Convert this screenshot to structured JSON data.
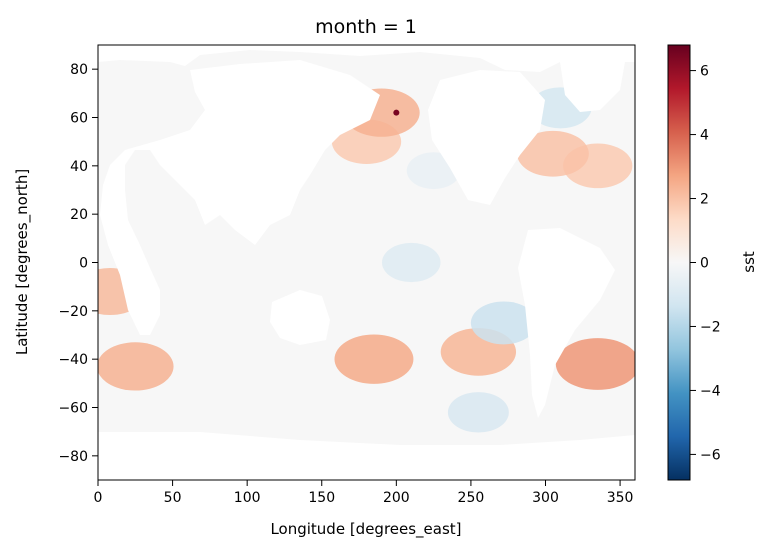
{
  "chart_data": {
    "type": "heatmap",
    "title": "month = 1",
    "xlabel": "Longitude [degrees_east]",
    "ylabel": "Latitude [degrees_north]",
    "xlim": [
      0,
      360
    ],
    "ylim": [
      -90,
      90
    ],
    "x_ticks": [
      0,
      50,
      100,
      150,
      200,
      250,
      300,
      350
    ],
    "y_ticks": [
      80,
      60,
      40,
      20,
      0,
      -20,
      -40,
      -60,
      -80
    ],
    "x_tick_labels": [
      "0",
      "50",
      "100",
      "150",
      "200",
      "250",
      "300",
      "350"
    ],
    "y_tick_labels": [
      "80",
      "60",
      "40",
      "20",
      "0",
      "−20",
      "−40",
      "−60",
      "−80"
    ],
    "colorbar": {
      "label": "sst",
      "colormap": "RdBu_r",
      "vmin": -6.8,
      "vmax": 6.8,
      "ticks": [
        6,
        4,
        2,
        0,
        -2,
        -4,
        -6
      ],
      "tick_labels": [
        "6",
        "4",
        "2",
        "0",
        "−2",
        "−4",
        "−6"
      ],
      "colors": [
        "#053061",
        "#2166ac",
        "#4393c3",
        "#92c5de",
        "#d1e5f0",
        "#f7f7f7",
        "#fddbc7",
        "#f4a582",
        "#d6604d",
        "#b2182b",
        "#67001f"
      ]
    },
    "grid": false,
    "land_color": "#ffffff",
    "anomaly_features": [
      {
        "lon": 335,
        "lat": -42,
        "value": 3.0
      },
      {
        "lon": 185,
        "lat": -40,
        "value": 2.6
      },
      {
        "lon": 255,
        "lat": -37,
        "value": 2.3
      },
      {
        "lon": 25,
        "lat": -43,
        "value": 2.4
      },
      {
        "lon": 8,
        "lat": -12,
        "value": 2.2
      },
      {
        "lon": 180,
        "lat": 50,
        "value": 1.8
      },
      {
        "lon": 335,
        "lat": 40,
        "value": 1.8
      },
      {
        "lon": 305,
        "lat": 45,
        "value": 2.0
      },
      {
        "lon": 190,
        "lat": 62,
        "value": 2.4
      },
      {
        "lon": 210,
        "lat": 0,
        "value": -0.9
      },
      {
        "lon": 272,
        "lat": -25,
        "value": -1.5
      },
      {
        "lon": 255,
        "lat": -62,
        "value": -1.1
      },
      {
        "lon": 310,
        "lat": 64,
        "value": -1.2
      },
      {
        "lon": 225,
        "lat": 38,
        "value": -0.5
      },
      {
        "lon": 200,
        "lat": 62,
        "value": 6.5
      }
    ]
  }
}
